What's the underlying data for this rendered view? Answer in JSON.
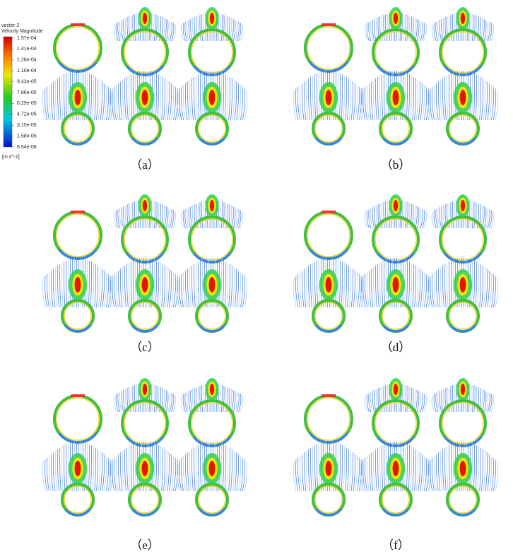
{
  "legend": {
    "title": "vector-2",
    "subtitle": "Velocity Magnitude",
    "ticks": [
      "1.57e-04",
      "1.41e-04",
      "1.26e-04",
      "1.10e-04",
      "9.43e-05",
      "7.86e-05",
      "6.29e-05",
      "4.72e-05",
      "3.15e-05",
      "1.58e-05",
      "6.54e-08"
    ],
    "unit": "[m s^-1]"
  },
  "panels": [
    {
      "label": "（a）"
    },
    {
      "label": "（b）"
    },
    {
      "label": "（c）"
    },
    {
      "label": "（d）"
    },
    {
      "label": "（e）"
    },
    {
      "label": "（f）"
    }
  ]
}
